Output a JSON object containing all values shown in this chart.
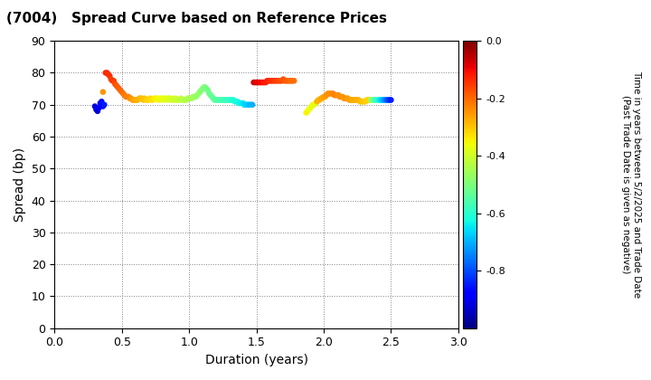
{
  "title": "(7004)   Spread Curve based on Reference Prices",
  "xlabel": "Duration (years)",
  "ylabel": "Spread (bp)",
  "colorbar_label_line1": "Time in years between 5/2/2025 and Trade Date",
  "colorbar_label_line2": "(Past Trade Date is given as negative)",
  "xlim": [
    0.0,
    3.0
  ],
  "ylim": [
    0,
    90
  ],
  "xticks": [
    0.0,
    0.5,
    1.0,
    1.5,
    2.0,
    2.5,
    3.0
  ],
  "yticks": [
    0,
    10,
    20,
    30,
    40,
    50,
    60,
    70,
    80,
    90
  ],
  "cmap": "jet",
  "vmin": -1.0,
  "vmax": 0.0,
  "points": [
    [
      0.3,
      69.5,
      -0.92
    ],
    [
      0.31,
      68.5,
      -0.9
    ],
    [
      0.32,
      68.0,
      -0.92
    ],
    [
      0.33,
      69.0,
      -0.9
    ],
    [
      0.34,
      70.5,
      -0.88
    ],
    [
      0.35,
      71.0,
      -0.86
    ],
    [
      0.36,
      69.5,
      -0.87
    ],
    [
      0.37,
      70.0,
      -0.85
    ],
    [
      0.36,
      74.0,
      -0.25
    ],
    [
      0.38,
      80.0,
      -0.13
    ],
    [
      0.39,
      80.0,
      -0.13
    ],
    [
      0.4,
      79.5,
      -0.14
    ],
    [
      0.41,
      79.0,
      -0.14
    ],
    [
      0.42,
      78.0,
      -0.15
    ],
    [
      0.43,
      77.5,
      -0.15
    ],
    [
      0.44,
      77.5,
      -0.16
    ],
    [
      0.45,
      76.5,
      -0.17
    ],
    [
      0.46,
      76.0,
      -0.18
    ],
    [
      0.47,
      75.5,
      -0.19
    ],
    [
      0.48,
      75.0,
      -0.19
    ],
    [
      0.49,
      74.5,
      -0.2
    ],
    [
      0.5,
      74.0,
      -0.2
    ],
    [
      0.51,
      73.5,
      -0.21
    ],
    [
      0.52,
      73.0,
      -0.22
    ],
    [
      0.53,
      72.5,
      -0.22
    ],
    [
      0.54,
      72.5,
      -0.23
    ],
    [
      0.55,
      72.5,
      -0.23
    ],
    [
      0.56,
      72.0,
      -0.24
    ],
    [
      0.57,
      72.0,
      -0.25
    ],
    [
      0.58,
      71.5,
      -0.26
    ],
    [
      0.59,
      71.5,
      -0.26
    ],
    [
      0.6,
      71.5,
      -0.27
    ],
    [
      0.61,
      71.5,
      -0.27
    ],
    [
      0.62,
      71.5,
      -0.28
    ],
    [
      0.63,
      72.0,
      -0.28
    ],
    [
      0.64,
      72.0,
      -0.29
    ],
    [
      0.65,
      72.0,
      -0.29
    ],
    [
      0.66,
      71.5,
      -0.3
    ],
    [
      0.67,
      72.0,
      -0.3
    ],
    [
      0.68,
      71.5,
      -0.31
    ],
    [
      0.69,
      71.5,
      -0.31
    ],
    [
      0.7,
      71.5,
      -0.32
    ],
    [
      0.71,
      72.0,
      -0.32
    ],
    [
      0.72,
      71.5,
      -0.33
    ],
    [
      0.73,
      71.5,
      -0.33
    ],
    [
      0.74,
      72.0,
      -0.34
    ],
    [
      0.75,
      72.0,
      -0.34
    ],
    [
      0.76,
      72.0,
      -0.35
    ],
    [
      0.77,
      71.5,
      -0.35
    ],
    [
      0.78,
      72.0,
      -0.36
    ],
    [
      0.79,
      72.0,
      -0.36
    ],
    [
      0.8,
      71.5,
      -0.37
    ],
    [
      0.81,
      72.0,
      -0.37
    ],
    [
      0.82,
      72.0,
      -0.37
    ],
    [
      0.83,
      71.5,
      -0.38
    ],
    [
      0.84,
      72.0,
      -0.38
    ],
    [
      0.85,
      72.0,
      -0.38
    ],
    [
      0.86,
      71.5,
      -0.39
    ],
    [
      0.87,
      72.0,
      -0.39
    ],
    [
      0.88,
      71.5,
      -0.4
    ],
    [
      0.89,
      71.5,
      -0.4
    ],
    [
      0.9,
      72.0,
      -0.4
    ],
    [
      0.91,
      71.5,
      -0.41
    ],
    [
      0.92,
      71.5,
      -0.41
    ],
    [
      0.93,
      71.5,
      -0.42
    ],
    [
      0.94,
      72.0,
      -0.42
    ],
    [
      0.95,
      71.5,
      -0.42
    ],
    [
      0.96,
      71.5,
      -0.43
    ],
    [
      0.97,
      71.5,
      -0.43
    ],
    [
      0.98,
      71.5,
      -0.44
    ],
    [
      0.99,
      72.0,
      -0.44
    ],
    [
      1.0,
      72.0,
      -0.44
    ],
    [
      1.01,
      72.0,
      -0.45
    ],
    [
      1.02,
      72.0,
      -0.45
    ],
    [
      1.03,
      72.5,
      -0.46
    ],
    [
      1.04,
      72.5,
      -0.46
    ],
    [
      1.05,
      72.5,
      -0.47
    ],
    [
      1.06,
      73.0,
      -0.47
    ],
    [
      1.07,
      73.5,
      -0.48
    ],
    [
      1.08,
      74.0,
      -0.48
    ],
    [
      1.09,
      74.5,
      -0.49
    ],
    [
      1.1,
      75.0,
      -0.49
    ],
    [
      1.11,
      75.5,
      -0.5
    ],
    [
      1.12,
      75.5,
      -0.5
    ],
    [
      1.13,
      75.0,
      -0.51
    ],
    [
      1.14,
      74.5,
      -0.51
    ],
    [
      1.15,
      73.5,
      -0.52
    ],
    [
      1.16,
      73.0,
      -0.52
    ],
    [
      1.17,
      72.5,
      -0.53
    ],
    [
      1.18,
      72.0,
      -0.53
    ],
    [
      1.19,
      71.5,
      -0.54
    ],
    [
      1.2,
      71.5,
      -0.54
    ],
    [
      1.21,
      71.5,
      -0.55
    ],
    [
      1.22,
      71.5,
      -0.55
    ],
    [
      1.23,
      71.5,
      -0.56
    ],
    [
      1.24,
      71.5,
      -0.56
    ],
    [
      1.25,
      71.5,
      -0.57
    ],
    [
      1.26,
      71.5,
      -0.57
    ],
    [
      1.27,
      71.5,
      -0.58
    ],
    [
      1.28,
      71.5,
      -0.58
    ],
    [
      1.29,
      71.5,
      -0.59
    ],
    [
      1.3,
      71.5,
      -0.59
    ],
    [
      1.31,
      71.5,
      -0.6
    ],
    [
      1.32,
      71.5,
      -0.6
    ],
    [
      1.33,
      71.5,
      -0.61
    ],
    [
      1.34,
      71.0,
      -0.61
    ],
    [
      1.35,
      71.0,
      -0.62
    ],
    [
      1.36,
      71.0,
      -0.62
    ],
    [
      1.37,
      70.5,
      -0.63
    ],
    [
      1.38,
      70.5,
      -0.63
    ],
    [
      1.39,
      70.5,
      -0.64
    ],
    [
      1.4,
      70.5,
      -0.65
    ],
    [
      1.41,
      70.0,
      -0.66
    ],
    [
      1.42,
      70.0,
      -0.67
    ],
    [
      1.43,
      70.0,
      -0.67
    ],
    [
      1.44,
      70.0,
      -0.68
    ],
    [
      1.45,
      70.0,
      -0.69
    ],
    [
      1.46,
      70.0,
      -0.69
    ],
    [
      1.47,
      70.0,
      -0.7
    ],
    [
      1.48,
      77.0,
      -0.07
    ],
    [
      1.49,
      77.0,
      -0.08
    ],
    [
      1.5,
      77.0,
      -0.08
    ],
    [
      1.51,
      77.0,
      -0.09
    ],
    [
      1.52,
      77.0,
      -0.09
    ],
    [
      1.53,
      77.0,
      -0.1
    ],
    [
      1.54,
      77.0,
      -0.1
    ],
    [
      1.55,
      77.0,
      -0.11
    ],
    [
      1.56,
      77.0,
      -0.11
    ],
    [
      1.57,
      77.0,
      -0.12
    ],
    [
      1.58,
      77.5,
      -0.12
    ],
    [
      1.59,
      77.5,
      -0.13
    ],
    [
      1.6,
      77.5,
      -0.13
    ],
    [
      1.61,
      77.5,
      -0.14
    ],
    [
      1.62,
      77.5,
      -0.14
    ],
    [
      1.63,
      77.5,
      -0.15
    ],
    [
      1.64,
      77.5,
      -0.15
    ],
    [
      1.65,
      77.5,
      -0.16
    ],
    [
      1.66,
      77.5,
      -0.16
    ],
    [
      1.67,
      77.5,
      -0.17
    ],
    [
      1.68,
      77.5,
      -0.17
    ],
    [
      1.69,
      77.5,
      -0.17
    ],
    [
      1.7,
      78.0,
      -0.18
    ],
    [
      1.71,
      77.5,
      -0.18
    ],
    [
      1.72,
      77.5,
      -0.19
    ],
    [
      1.73,
      77.5,
      -0.19
    ],
    [
      1.74,
      77.5,
      -0.19
    ],
    [
      1.75,
      77.5,
      -0.2
    ],
    [
      1.76,
      77.5,
      -0.2
    ],
    [
      1.77,
      77.5,
      -0.2
    ],
    [
      1.78,
      77.5,
      -0.21
    ],
    [
      1.87,
      67.5,
      -0.35
    ],
    [
      1.88,
      68.0,
      -0.35
    ],
    [
      1.89,
      68.5,
      -0.36
    ],
    [
      1.9,
      69.0,
      -0.36
    ],
    [
      1.91,
      69.5,
      -0.36
    ],
    [
      1.92,
      70.0,
      -0.37
    ],
    [
      1.93,
      70.0,
      -0.37
    ],
    [
      1.94,
      70.5,
      -0.37
    ],
    [
      1.95,
      71.0,
      -0.28
    ],
    [
      1.96,
      71.5,
      -0.28
    ],
    [
      1.97,
      71.5,
      -0.28
    ],
    [
      1.98,
      72.0,
      -0.27
    ],
    [
      1.99,
      72.0,
      -0.27
    ],
    [
      2.0,
      72.5,
      -0.26
    ],
    [
      2.01,
      72.5,
      -0.26
    ],
    [
      2.02,
      73.0,
      -0.25
    ],
    [
      2.03,
      73.5,
      -0.25
    ],
    [
      2.04,
      73.5,
      -0.25
    ],
    [
      2.05,
      73.5,
      -0.24
    ],
    [
      2.06,
      73.5,
      -0.24
    ],
    [
      2.07,
      73.5,
      -0.23
    ],
    [
      2.08,
      73.0,
      -0.23
    ],
    [
      2.09,
      73.0,
      -0.23
    ],
    [
      2.1,
      73.0,
      -0.24
    ],
    [
      2.11,
      73.0,
      -0.24
    ],
    [
      2.12,
      72.5,
      -0.24
    ],
    [
      2.13,
      72.5,
      -0.24
    ],
    [
      2.14,
      72.5,
      -0.25
    ],
    [
      2.15,
      72.0,
      -0.25
    ],
    [
      2.16,
      72.0,
      -0.25
    ],
    [
      2.17,
      72.0,
      -0.25
    ],
    [
      2.18,
      72.0,
      -0.26
    ],
    [
      2.19,
      71.5,
      -0.26
    ],
    [
      2.2,
      71.5,
      -0.26
    ],
    [
      2.21,
      71.5,
      -0.27
    ],
    [
      2.22,
      71.5,
      -0.27
    ],
    [
      2.23,
      71.5,
      -0.27
    ],
    [
      2.24,
      71.5,
      -0.28
    ],
    [
      2.25,
      71.5,
      -0.28
    ],
    [
      2.26,
      71.5,
      -0.28
    ],
    [
      2.27,
      71.0,
      -0.29
    ],
    [
      2.28,
      71.0,
      -0.29
    ],
    [
      2.29,
      71.0,
      -0.3
    ],
    [
      2.3,
      71.0,
      -0.3
    ],
    [
      2.31,
      71.0,
      -0.31
    ],
    [
      2.32,
      71.5,
      -0.31
    ],
    [
      2.33,
      71.5,
      -0.31
    ],
    [
      2.34,
      71.5,
      -0.32
    ],
    [
      2.35,
      71.5,
      -0.45
    ],
    [
      2.36,
      71.5,
      -0.5
    ],
    [
      2.37,
      71.5,
      -0.52
    ],
    [
      2.38,
      71.5,
      -0.55
    ],
    [
      2.39,
      71.5,
      -0.58
    ],
    [
      2.4,
      71.5,
      -0.6
    ],
    [
      2.41,
      71.5,
      -0.63
    ],
    [
      2.42,
      71.5,
      -0.65
    ],
    [
      2.43,
      71.5,
      -0.67
    ],
    [
      2.44,
      71.5,
      -0.7
    ],
    [
      2.45,
      71.5,
      -0.72
    ],
    [
      2.46,
      71.5,
      -0.75
    ],
    [
      2.47,
      71.5,
      -0.78
    ],
    [
      2.48,
      71.5,
      -0.8
    ],
    [
      2.49,
      71.5,
      -0.83
    ],
    [
      2.5,
      71.5,
      -0.85
    ]
  ]
}
